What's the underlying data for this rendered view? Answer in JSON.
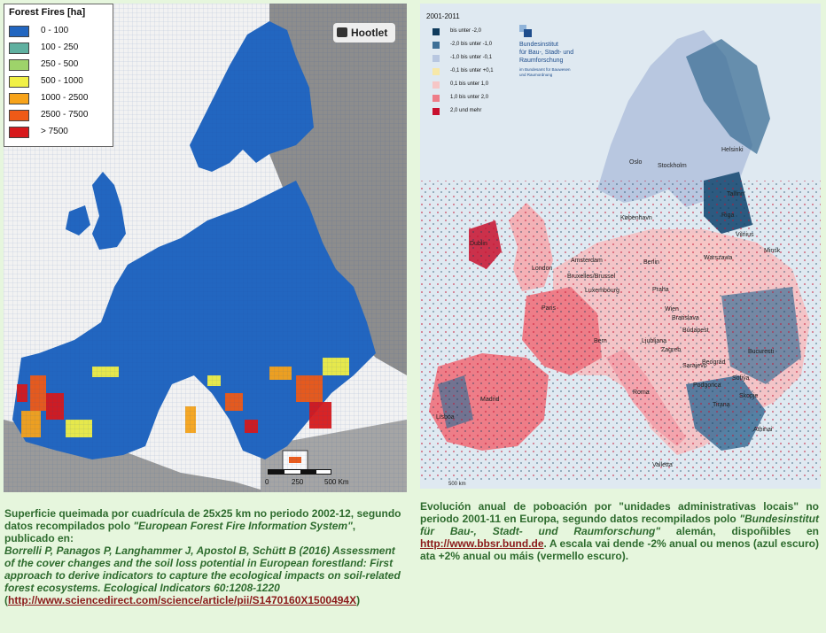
{
  "left_map": {
    "legend_title": "Forest Fires [ha]",
    "legend": [
      {
        "label": "0 - 100",
        "color": "#2266c0"
      },
      {
        "label": "100 - 250",
        "color": "#5fb0a0"
      },
      {
        "label": "250 - 500",
        "color": "#9ed36a"
      },
      {
        "label": "500 - 1000",
        "color": "#f1f046"
      },
      {
        "label": "1000 - 2500",
        "color": "#f7a31a"
      },
      {
        "label": "2500 - 7500",
        "color": "#ef5a17"
      },
      {
        "label": "> 7500",
        "color": "#d7191c"
      }
    ],
    "badge": "Hootlet",
    "scale_labels": [
      "0",
      "250",
      "500 Km"
    ]
  },
  "right_map": {
    "legend_title": "2001-2011",
    "legend": [
      {
        "label": "bis unter -2,0",
        "color": "#0f3b5c"
      },
      {
        "label": "-2,0 bis unter -1,0",
        "color": "#3d6f96"
      },
      {
        "label": "-1,0 bis unter -0,1",
        "color": "#b8c7e0"
      },
      {
        "label": "-0,1 bis unter +0,1",
        "color": "#f7e8a8"
      },
      {
        "label": "0,1 bis unter 1,0",
        "color": "#f6c6c6"
      },
      {
        "label": "1,0 bis unter 2,0",
        "color": "#ee7d88"
      },
      {
        "label": "2,0 und mehr",
        "color": "#c8102e"
      }
    ],
    "institute": [
      "Bundesinstitut",
      "für Bau-, Stadt- und",
      "Raumforschung"
    ],
    "institute_small": [
      "im Bundesamt für Bauwesen",
      "und Raumordnung"
    ],
    "cities": [
      "Oslo",
      "Stockholm",
      "Helsinki",
      "Tallinn",
      "Riga",
      "København",
      "Vilnius",
      "Dublin",
      "Minsk",
      "Amsterdam",
      "Berlin",
      "Warszawa",
      "London",
      "Bruxelles/Brussel",
      "Praha",
      "Luxembourg",
      "Paris",
      "Wien",
      "Bratislava",
      "Budapest",
      "Ljubljana",
      "Bern",
      "Zagreb",
      "Bucuresti",
      "Sarajevo",
      "Beograd",
      "Sofiya",
      "Podgorica",
      "Skopje",
      "Tirana",
      "Roma",
      "Madrid",
      "Lisboa",
      "Athinai",
      "Valletta"
    ],
    "scale_label": "500 km"
  },
  "captions": {
    "left_1": "Superficie queimada por cuadrícula de 25x25 km no periodo 2002-12, segundo datos recompilados polo ",
    "left_1_it": "\"European Forest Fire Information System\"",
    "left_2": ", publicado en:",
    "left_3_it": "Borrelli P, Panagos P, Langhammer J, Apostol B, Schütt B (2016) Assessment of the cover changes and the soil loss potential in European forestland: First approach to derive indicators to capture the ecological impacts on soil-related forest ecosystems. Ecological Indicators 60:1208-1220",
    "left_4_open": "(",
    "left_link": "http://www.sciencedirect.com/science/article/pii/S1470160X1500494X",
    "left_4_close": ")",
    "right_1": "Evolución anual de poboación por \"unidades administrativas locais\" no periodo 2001-11 en Europa, segundo datos recompilados polo ",
    "right_1_it": "\"Bundesinstitut für Bau-, Stadt- und Raumforschung\"",
    "right_2": " alemán, dispoñibles en ",
    "right_link": "http://www.bbsr.bund.de",
    "right_3": ". A escala vai dende -2% anual ou menos (azul escuro) ata +2% anual ou máis (vermello escuro)."
  }
}
